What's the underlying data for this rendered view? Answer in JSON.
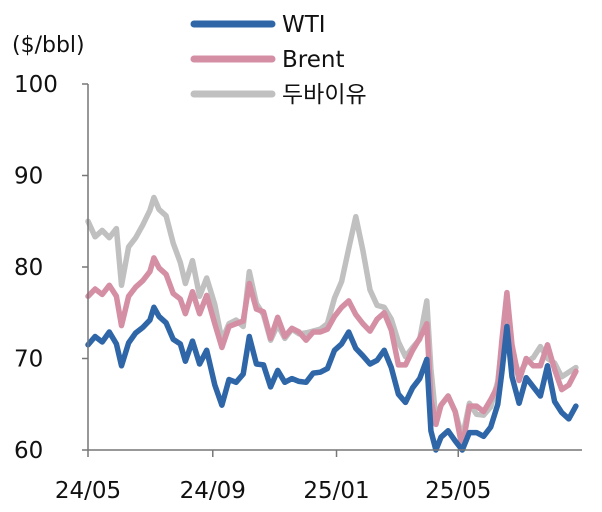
{
  "chart_data": {
    "type": "line",
    "ylabel": "($/bbl)",
    "ylim": [
      60,
      100
    ],
    "yticks": [
      60,
      70,
      80,
      90,
      100
    ],
    "x_ticks": [
      "24/05",
      "24/09",
      "25/01",
      "25/05"
    ],
    "x_tick_dates": [
      "2024-05-01",
      "2024-09-01",
      "2025-01-01",
      "2025-05-01"
    ],
    "x_range": [
      "2024-05-01",
      "2025-08-31"
    ],
    "grid": false,
    "legend": "top",
    "series": [
      {
        "name": "WTI",
        "color": "#2e66a8",
        "points": [
          [
            "2024-05-01",
            71.5
          ],
          [
            "2024-05-08",
            72.4
          ],
          [
            "2024-05-15",
            71.8
          ],
          [
            "2024-05-22",
            72.9
          ],
          [
            "2024-05-29",
            71.6
          ],
          [
            "2024-06-03",
            69.2
          ],
          [
            "2024-06-10",
            71.7
          ],
          [
            "2024-06-17",
            72.8
          ],
          [
            "2024-06-24",
            73.4
          ],
          [
            "2024-07-01",
            74.2
          ],
          [
            "2024-07-05",
            75.6
          ],
          [
            "2024-07-10",
            74.6
          ],
          [
            "2024-07-17",
            73.9
          ],
          [
            "2024-07-24",
            72.1
          ],
          [
            "2024-07-31",
            71.6
          ],
          [
            "2024-08-05",
            69.7
          ],
          [
            "2024-08-12",
            71.9
          ],
          [
            "2024-08-19",
            69.4
          ],
          [
            "2024-08-26",
            70.9
          ],
          [
            "2024-09-03",
            67.1
          ],
          [
            "2024-09-10",
            64.9
          ],
          [
            "2024-09-17",
            67.7
          ],
          [
            "2024-09-24",
            67.4
          ],
          [
            "2024-10-01",
            68.3
          ],
          [
            "2024-10-07",
            72.4
          ],
          [
            "2024-10-14",
            69.4
          ],
          [
            "2024-10-21",
            69.3
          ],
          [
            "2024-10-28",
            66.9
          ],
          [
            "2024-11-04",
            68.7
          ],
          [
            "2024-11-11",
            67.4
          ],
          [
            "2024-11-18",
            67.8
          ],
          [
            "2024-11-25",
            67.5
          ],
          [
            "2024-12-02",
            67.4
          ],
          [
            "2024-12-09",
            68.4
          ],
          [
            "2024-12-16",
            68.5
          ],
          [
            "2024-12-23",
            68.9
          ],
          [
            "2024-12-30",
            70.9
          ],
          [
            "2025-01-06",
            71.6
          ],
          [
            "2025-01-13",
            72.9
          ],
          [
            "2025-01-20",
            71.1
          ],
          [
            "2025-01-27",
            70.3
          ],
          [
            "2025-02-03",
            69.4
          ],
          [
            "2025-02-10",
            69.8
          ],
          [
            "2025-02-17",
            70.9
          ],
          [
            "2025-02-24",
            69.0
          ],
          [
            "2025-03-03",
            66.1
          ],
          [
            "2025-03-10",
            65.2
          ],
          [
            "2025-03-17",
            66.8
          ],
          [
            "2025-03-24",
            67.8
          ],
          [
            "2025-03-31",
            69.9
          ],
          [
            "2025-04-04",
            62.1
          ],
          [
            "2025-04-09",
            58.9
          ],
          [
            "2025-04-14",
            61.4
          ],
          [
            "2025-04-21",
            62.1
          ],
          [
            "2025-04-28",
            61.0
          ],
          [
            "2025-05-05",
            57.4
          ],
          [
            "2025-05-12",
            61.9
          ],
          [
            "2025-05-19",
            61.9
          ],
          [
            "2025-05-26",
            61.5
          ],
          [
            "2025-06-02",
            62.5
          ],
          [
            "2025-06-09",
            65.0
          ],
          [
            "2025-06-13",
            68.5
          ],
          [
            "2025-06-18",
            73.5
          ],
          [
            "2025-06-23",
            68.0
          ],
          [
            "2025-06-30",
            65.1
          ],
          [
            "2025-07-07",
            67.9
          ],
          [
            "2025-07-14",
            66.9
          ],
          [
            "2025-07-21",
            65.9
          ],
          [
            "2025-07-28",
            69.2
          ],
          [
            "2025-08-04",
            65.3
          ],
          [
            "2025-08-11",
            64.1
          ],
          [
            "2025-08-18",
            63.4
          ],
          [
            "2025-08-25",
            64.8
          ]
        ]
      },
      {
        "name": "Brent",
        "color": "#d48fa4",
        "points": [
          [
            "2024-05-01",
            76.8
          ],
          [
            "2024-05-08",
            77.6
          ],
          [
            "2024-05-15",
            77.0
          ],
          [
            "2024-05-22",
            78.0
          ],
          [
            "2024-05-29",
            76.8
          ],
          [
            "2024-06-03",
            73.6
          ],
          [
            "2024-06-10",
            76.8
          ],
          [
            "2024-06-17",
            77.8
          ],
          [
            "2024-06-24",
            78.5
          ],
          [
            "2024-07-01",
            79.5
          ],
          [
            "2024-07-05",
            81.0
          ],
          [
            "2024-07-10",
            79.9
          ],
          [
            "2024-07-17",
            79.2
          ],
          [
            "2024-07-24",
            77.1
          ],
          [
            "2024-07-31",
            76.5
          ],
          [
            "2024-08-05",
            74.9
          ],
          [
            "2024-08-12",
            77.3
          ],
          [
            "2024-08-19",
            74.9
          ],
          [
            "2024-08-26",
            76.9
          ],
          [
            "2024-09-03",
            73.8
          ],
          [
            "2024-09-10",
            71.2
          ],
          [
            "2024-09-17",
            73.5
          ],
          [
            "2024-09-24",
            73.8
          ],
          [
            "2024-10-01",
            74.1
          ],
          [
            "2024-10-07",
            78.2
          ],
          [
            "2024-10-14",
            75.4
          ],
          [
            "2024-10-21",
            75.1
          ],
          [
            "2024-10-28",
            72.2
          ],
          [
            "2024-11-04",
            74.5
          ],
          [
            "2024-11-11",
            72.4
          ],
          [
            "2024-11-18",
            73.3
          ],
          [
            "2024-11-25",
            72.9
          ],
          [
            "2024-12-02",
            72.0
          ],
          [
            "2024-12-09",
            72.9
          ],
          [
            "2024-12-16",
            72.9
          ],
          [
            "2024-12-23",
            73.2
          ],
          [
            "2024-12-30",
            74.6
          ],
          [
            "2025-01-06",
            75.6
          ],
          [
            "2025-01-13",
            76.3
          ],
          [
            "2025-01-20",
            74.8
          ],
          [
            "2025-01-27",
            73.8
          ],
          [
            "2025-02-03",
            73.0
          ],
          [
            "2025-02-10",
            74.3
          ],
          [
            "2025-02-17",
            75.0
          ],
          [
            "2025-02-24",
            73.1
          ],
          [
            "2025-03-03",
            69.3
          ],
          [
            "2025-03-10",
            69.3
          ],
          [
            "2025-03-17",
            70.9
          ],
          [
            "2025-03-24",
            72.2
          ],
          [
            "2025-03-31",
            73.8
          ],
          [
            "2025-04-04",
            65.6
          ],
          [
            "2025-04-09",
            62.8
          ],
          [
            "2025-04-14",
            64.9
          ],
          [
            "2025-04-21",
            65.9
          ],
          [
            "2025-04-28",
            64.2
          ],
          [
            "2025-05-05",
            60.2
          ],
          [
            "2025-05-12",
            64.8
          ],
          [
            "2025-05-19",
            64.8
          ],
          [
            "2025-05-26",
            64.2
          ],
          [
            "2025-06-02",
            65.5
          ],
          [
            "2025-06-09",
            67.0
          ],
          [
            "2025-06-13",
            72.0
          ],
          [
            "2025-06-18",
            77.2
          ],
          [
            "2025-06-23",
            71.5
          ],
          [
            "2025-06-30",
            67.6
          ],
          [
            "2025-07-07",
            70.0
          ],
          [
            "2025-07-14",
            69.2
          ],
          [
            "2025-07-21",
            69.2
          ],
          [
            "2025-07-28",
            71.5
          ],
          [
            "2025-08-04",
            68.8
          ],
          [
            "2025-08-11",
            66.6
          ],
          [
            "2025-08-18",
            67.1
          ],
          [
            "2025-08-25",
            68.6
          ]
        ]
      },
      {
        "name": "두바이유",
        "color": "#c0c0c0",
        "points": [
          [
            "2024-05-01",
            85.0
          ],
          [
            "2024-05-08",
            83.3
          ],
          [
            "2024-05-15",
            84.0
          ],
          [
            "2024-05-22",
            83.2
          ],
          [
            "2024-05-29",
            84.2
          ],
          [
            "2024-06-03",
            78.0
          ],
          [
            "2024-06-10",
            82.2
          ],
          [
            "2024-06-17",
            83.2
          ],
          [
            "2024-06-24",
            84.6
          ],
          [
            "2024-07-01",
            86.2
          ],
          [
            "2024-07-05",
            87.6
          ],
          [
            "2024-07-10",
            86.3
          ],
          [
            "2024-07-17",
            85.6
          ],
          [
            "2024-07-24",
            82.6
          ],
          [
            "2024-07-31",
            80.5
          ],
          [
            "2024-08-05",
            78.2
          ],
          [
            "2024-08-12",
            80.7
          ],
          [
            "2024-08-19",
            76.8
          ],
          [
            "2024-08-26",
            78.8
          ],
          [
            "2024-09-03",
            75.9
          ],
          [
            "2024-09-10",
            72.0
          ],
          [
            "2024-09-17",
            73.8
          ],
          [
            "2024-09-24",
            74.2
          ],
          [
            "2024-10-01",
            73.5
          ],
          [
            "2024-10-07",
            79.5
          ],
          [
            "2024-10-14",
            76.0
          ],
          [
            "2024-10-21",
            74.8
          ],
          [
            "2024-10-28",
            72.0
          ],
          [
            "2024-11-04",
            73.7
          ],
          [
            "2024-11-11",
            72.2
          ],
          [
            "2024-11-18",
            73.2
          ],
          [
            "2024-11-25",
            72.7
          ],
          [
            "2024-12-02",
            72.8
          ],
          [
            "2024-12-09",
            73.0
          ],
          [
            "2024-12-16",
            73.2
          ],
          [
            "2024-12-23",
            73.8
          ],
          [
            "2024-12-30",
            76.6
          ],
          [
            "2025-01-06",
            78.4
          ],
          [
            "2025-01-13",
            82.0
          ],
          [
            "2025-01-20",
            85.5
          ],
          [
            "2025-01-27",
            81.8
          ],
          [
            "2025-02-03",
            77.5
          ],
          [
            "2025-02-10",
            75.8
          ],
          [
            "2025-02-17",
            75.6
          ],
          [
            "2025-02-24",
            74.3
          ],
          [
            "2025-03-03",
            71.8
          ],
          [
            "2025-03-10",
            70.2
          ],
          [
            "2025-03-17",
            71.2
          ],
          [
            "2025-03-24",
            72.1
          ],
          [
            "2025-03-31",
            76.3
          ],
          [
            "2025-04-04",
            68.9
          ],
          [
            "2025-04-09",
            63.4
          ],
          [
            "2025-04-14",
            64.9
          ],
          [
            "2025-04-21",
            65.9
          ],
          [
            "2025-04-28",
            64.2
          ],
          [
            "2025-05-05",
            61.3
          ],
          [
            "2025-05-12",
            65.1
          ],
          [
            "2025-05-19",
            63.9
          ],
          [
            "2025-05-26",
            63.8
          ],
          [
            "2025-06-02",
            64.7
          ],
          [
            "2025-06-09",
            67.5
          ],
          [
            "2025-06-13",
            71.6
          ],
          [
            "2025-06-18",
            75.9
          ],
          [
            "2025-06-23",
            70.5
          ],
          [
            "2025-06-30",
            68.3
          ],
          [
            "2025-07-07",
            69.6
          ],
          [
            "2025-07-14",
            70.1
          ],
          [
            "2025-07-21",
            71.3
          ],
          [
            "2025-07-28",
            70.0
          ],
          [
            "2025-08-04",
            69.5
          ],
          [
            "2025-08-11",
            68.0
          ],
          [
            "2025-08-18",
            68.5
          ],
          [
            "2025-08-25",
            69.0
          ]
        ]
      }
    ]
  }
}
